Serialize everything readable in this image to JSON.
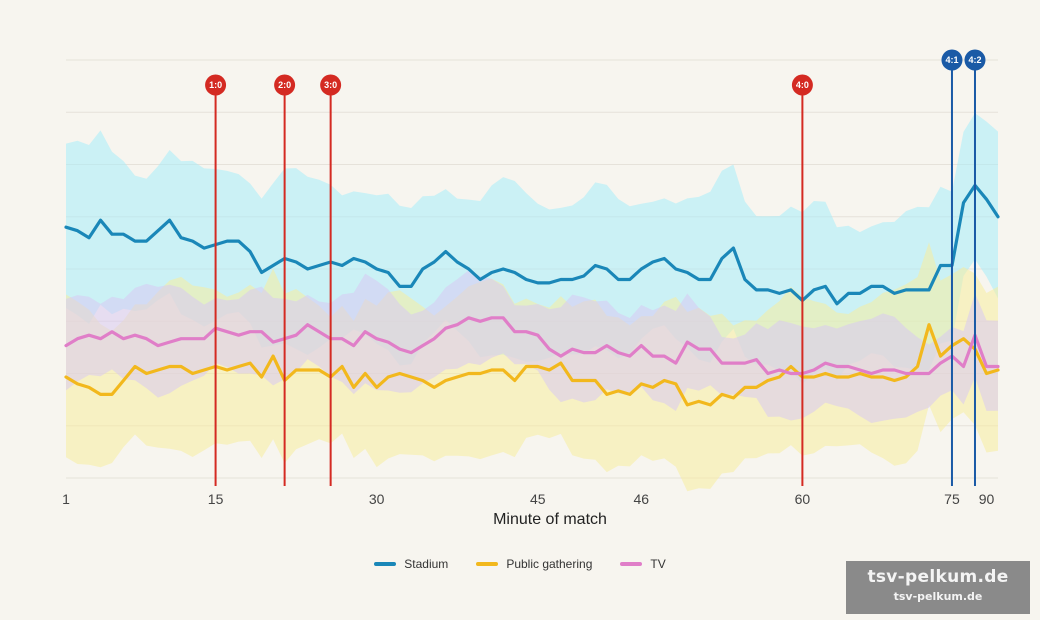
{
  "chart_data": {
    "type": "line",
    "xlabel": "Minute of match",
    "x_ticks": [
      "1",
      "15",
      "30",
      "45",
      "46",
      "60",
      "75",
      "90"
    ],
    "series": [
      {
        "name": "Stadium",
        "color": "#1a87b8",
        "band_color": "#a8ecfa",
        "values": [
          62,
          61,
          59,
          64,
          60,
          60,
          58,
          58,
          61,
          64,
          59,
          58,
          56,
          57,
          58,
          58,
          55,
          49,
          51,
          53,
          52,
          50,
          51,
          52,
          51,
          53,
          52,
          50,
          49,
          45,
          45,
          50,
          52,
          55,
          52,
          50,
          47,
          49,
          50,
          49,
          47,
          46,
          46,
          47,
          47,
          48,
          51,
          50,
          47,
          47,
          50,
          52,
          53,
          50,
          49,
          47,
          47,
          53,
          56,
          47,
          44,
          44,
          43,
          44,
          41,
          44,
          45,
          40,
          43,
          43,
          45,
          45,
          43,
          44,
          44,
          44,
          51,
          51,
          69,
          74,
          70,
          65
        ]
      },
      {
        "name": "Public gathering",
        "color": "#f2b81d",
        "band_color": "#f8ec9e",
        "values": [
          19,
          17,
          16,
          14,
          14,
          18,
          22,
          20,
          21,
          22,
          22,
          20,
          21,
          22,
          21,
          22,
          23,
          19,
          25,
          18,
          21,
          21,
          21,
          19,
          22,
          16,
          20,
          16,
          19,
          20,
          19,
          18,
          16,
          18,
          19,
          20,
          20,
          21,
          21,
          18,
          22,
          22,
          21,
          23,
          18,
          18,
          18,
          14,
          15,
          14,
          17,
          16,
          18,
          17,
          11,
          12,
          11,
          14,
          13,
          16,
          16,
          18,
          19,
          22,
          19,
          19,
          20,
          19,
          19,
          20,
          19,
          19,
          18,
          19,
          22,
          34,
          25,
          28,
          30,
          27,
          20,
          21
        ]
      },
      {
        "name": "TV",
        "color": "#e07ec8",
        "band_color": "#d8c8f2",
        "values": [
          28,
          30,
          31,
          30,
          32,
          30,
          31,
          30,
          28,
          29,
          30,
          30,
          30,
          33,
          32,
          31,
          32,
          32,
          29,
          30,
          31,
          34,
          32,
          30,
          30,
          28,
          32,
          30,
          29,
          27,
          26,
          28,
          30,
          33,
          34,
          36,
          35,
          36,
          36,
          32,
          32,
          31,
          27,
          25,
          27,
          26,
          26,
          28,
          26,
          25,
          28,
          25,
          25,
          23,
          29,
          27,
          27,
          23,
          23,
          23,
          24,
          20,
          21,
          20,
          20,
          21,
          23,
          22,
          22,
          21,
          20,
          21,
          21,
          20,
          20,
          20,
          23,
          25,
          22,
          31,
          22,
          22
        ]
      }
    ],
    "goals": [
      {
        "label": "1:0",
        "minute": 13,
        "team": "home",
        "color": "#d42a22"
      },
      {
        "label": "2:0",
        "minute": 19,
        "team": "home",
        "color": "#d42a22"
      },
      {
        "label": "3:0",
        "minute": 23,
        "team": "home",
        "color": "#d42a22"
      },
      {
        "label": "4:0",
        "minute": 64,
        "team": "home",
        "color": "#d42a22"
      },
      {
        "label": "4:1",
        "minute": 77,
        "team": "away",
        "color": "#1a5aa6"
      },
      {
        "label": "4:2",
        "minute": 79,
        "team": "away",
        "color": "#1a5aa6"
      }
    ],
    "ylim": [
      -10,
      110
    ],
    "grid": true,
    "legend_position": "bottom"
  },
  "watermark": {
    "line1": "tsv-pelkum.de",
    "line2": "tsv-pelkum.de"
  }
}
